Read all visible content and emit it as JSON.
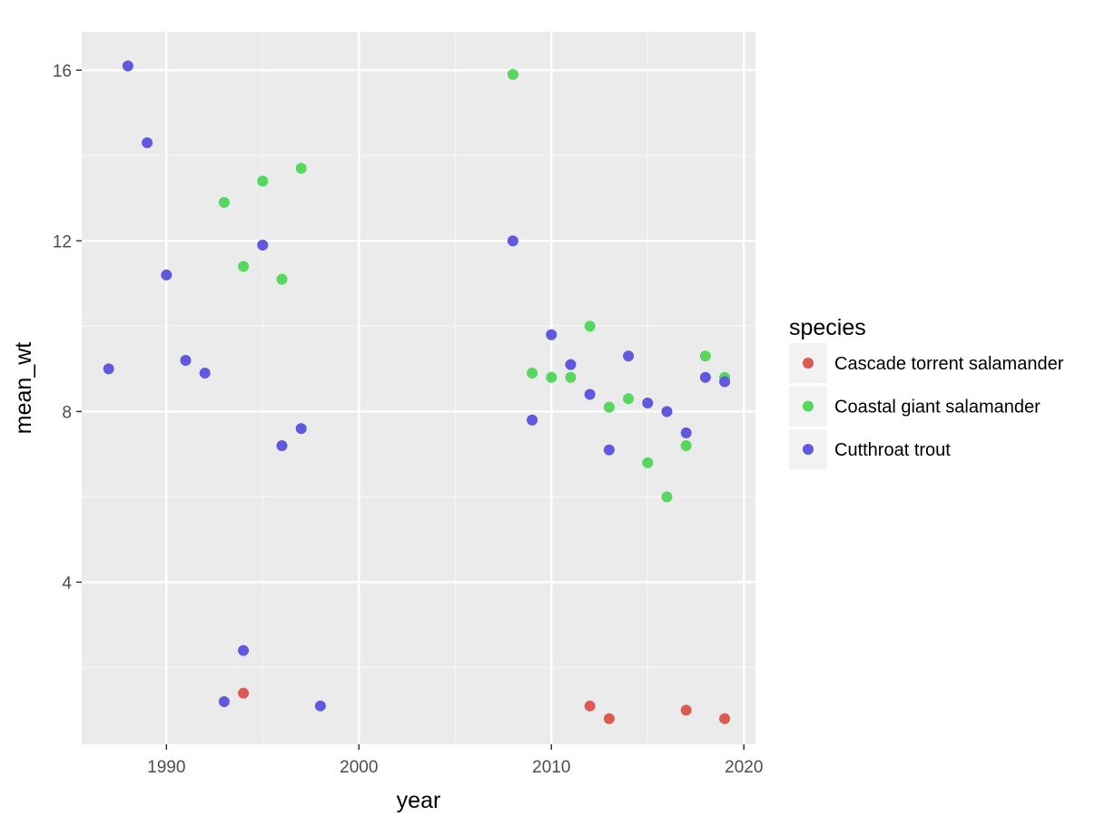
{
  "chart_data": {
    "type": "scatter",
    "title": "",
    "xlabel": "year",
    "ylabel": "mean_wt",
    "xlim": [
      1985.6,
      2020.6
    ],
    "ylim": [
      0.2,
      16.9
    ],
    "x_ticks": [
      1990,
      2000,
      2010,
      2020
    ],
    "y_ticks": [
      4,
      8,
      12,
      16
    ],
    "grid": true,
    "legend": {
      "title": "species",
      "position": "right"
    },
    "series": [
      {
        "name": "Cascade torrent salamander",
        "color": "#db5b53",
        "points": [
          {
            "x": 1994,
            "y": 1.4
          },
          {
            "x": 2012,
            "y": 1.1
          },
          {
            "x": 2013,
            "y": 0.8
          },
          {
            "x": 2017,
            "y": 1.0
          },
          {
            "x": 2019,
            "y": 0.8
          }
        ]
      },
      {
        "name": "Coastal giant salamander",
        "color": "#57d660",
        "points": [
          {
            "x": 1993,
            "y": 12.9
          },
          {
            "x": 1994,
            "y": 11.4
          },
          {
            "x": 1995,
            "y": 13.4
          },
          {
            "x": 1996,
            "y": 11.1
          },
          {
            "x": 1997,
            "y": 13.7
          },
          {
            "x": 2008,
            "y": 15.9
          },
          {
            "x": 2009,
            "y": 8.9
          },
          {
            "x": 2010,
            "y": 8.8
          },
          {
            "x": 2011,
            "y": 8.8
          },
          {
            "x": 2012,
            "y": 10.0
          },
          {
            "x": 2013,
            "y": 8.1
          },
          {
            "x": 2014,
            "y": 8.3
          },
          {
            "x": 2015,
            "y": 6.8
          },
          {
            "x": 2016,
            "y": 6.0
          },
          {
            "x": 2017,
            "y": 7.2
          },
          {
            "x": 2018,
            "y": 9.3
          },
          {
            "x": 2019,
            "y": 8.8
          }
        ]
      },
      {
        "name": "Cutthroat trout",
        "color": "#6158e0",
        "points": [
          {
            "x": 1987,
            "y": 9.0
          },
          {
            "x": 1988,
            "y": 16.1
          },
          {
            "x": 1989,
            "y": 14.3
          },
          {
            "x": 1990,
            "y": 11.2
          },
          {
            "x": 1991,
            "y": 9.2
          },
          {
            "x": 1992,
            "y": 8.9
          },
          {
            "x": 1993,
            "y": 1.2
          },
          {
            "x": 1994,
            "y": 2.4
          },
          {
            "x": 1995,
            "y": 11.9
          },
          {
            "x": 1996,
            "y": 7.2
          },
          {
            "x": 1997,
            "y": 7.6
          },
          {
            "x": 1998,
            "y": 1.1
          },
          {
            "x": 2008,
            "y": 12.0
          },
          {
            "x": 2009,
            "y": 7.8
          },
          {
            "x": 2010,
            "y": 9.8
          },
          {
            "x": 2011,
            "y": 9.1
          },
          {
            "x": 2012,
            "y": 8.4
          },
          {
            "x": 2013,
            "y": 7.1
          },
          {
            "x": 2014,
            "y": 9.3
          },
          {
            "x": 2015,
            "y": 8.2
          },
          {
            "x": 2016,
            "y": 8.0
          },
          {
            "x": 2017,
            "y": 7.5
          },
          {
            "x": 2018,
            "y": 8.8
          },
          {
            "x": 2019,
            "y": 8.7
          }
        ]
      }
    ]
  }
}
